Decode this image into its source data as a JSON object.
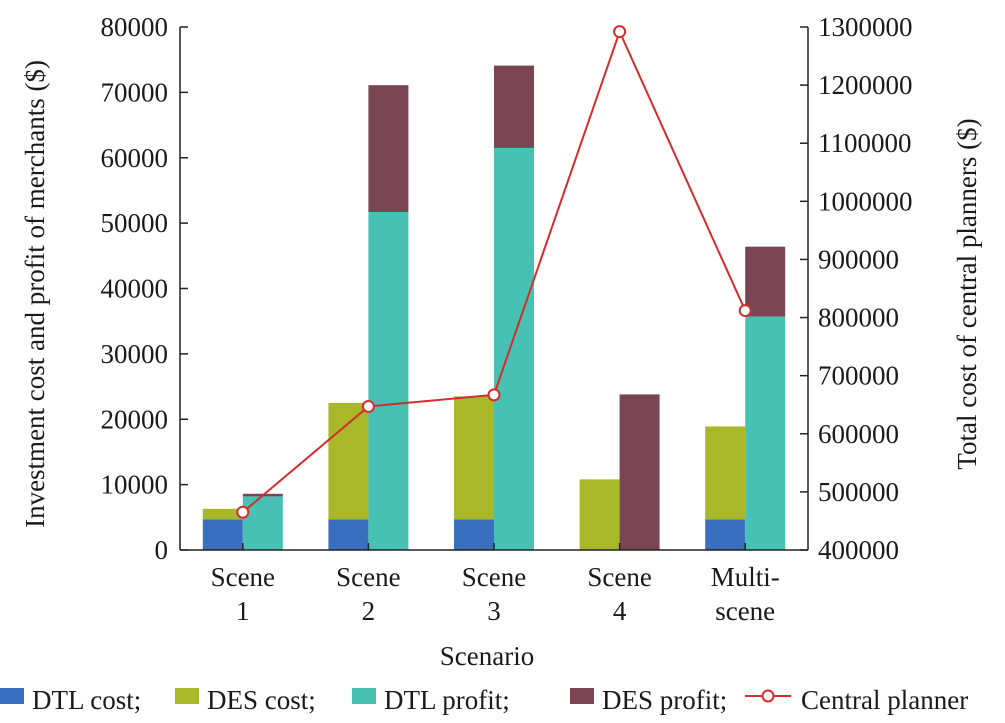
{
  "chart_data": {
    "type": "bar",
    "title": "",
    "xlabel": "Scenario",
    "ylabel_left": "Investment cost and profit of merchants ($)",
    "ylabel_right": "Total cost of central planners ($)",
    "ylim_left": [
      0,
      80000
    ],
    "ylim_right": [
      400000,
      1300000
    ],
    "left_ticks": [
      "0",
      "10000",
      "20000",
      "30000",
      "40000",
      "50000",
      "60000",
      "70000",
      "80000"
    ],
    "right_ticks": [
      "400000",
      "500000",
      "600000",
      "700000",
      "800000",
      "900000",
      "1000000",
      "1100000",
      "1200000",
      "1300000"
    ],
    "categories": [
      [
        "Scene",
        "1"
      ],
      [
        "Scene",
        "2"
      ],
      [
        "Scene",
        "3"
      ],
      [
        "Scene",
        "4"
      ],
      [
        "Multi-",
        "scene"
      ]
    ],
    "stack_cost": [
      {
        "name": "DTL cost",
        "color": "#3a6ebf",
        "values": [
          4700,
          4700,
          4700,
          0,
          4700
        ]
      },
      {
        "name": "DES cost",
        "color": "#a8b828",
        "values": [
          1600,
          17800,
          18800,
          10800,
          14200
        ]
      }
    ],
    "stack_profit": [
      {
        "name": "DTL profit",
        "color": "#47c1b4",
        "values": [
          8200,
          51700,
          61500,
          0,
          35700
        ]
      },
      {
        "name": "DES profit",
        "color": "#7a4552",
        "values": [
          400,
          19400,
          12600,
          23800,
          10700
        ]
      }
    ],
    "line": {
      "name": "Central planner",
      "color": "#d42c2c",
      "values": [
        465000,
        647000,
        667000,
        1292000,
        812000
      ]
    },
    "legend": {
      "placement": "bottom",
      "entries": [
        {
          "label": "DTL cost;",
          "color": "#3a6ebf",
          "kind": "patch"
        },
        {
          "label": "DES cost;",
          "color": "#a8b828",
          "kind": "patch"
        },
        {
          "label": "DTL profit;",
          "color": "#47c1b4",
          "kind": "patch"
        },
        {
          "label": "DES profit;",
          "color": "#7a4552",
          "kind": "patch"
        },
        {
          "label": "Central planner",
          "color": "#d42c2c",
          "kind": "line-marker"
        }
      ]
    }
  }
}
